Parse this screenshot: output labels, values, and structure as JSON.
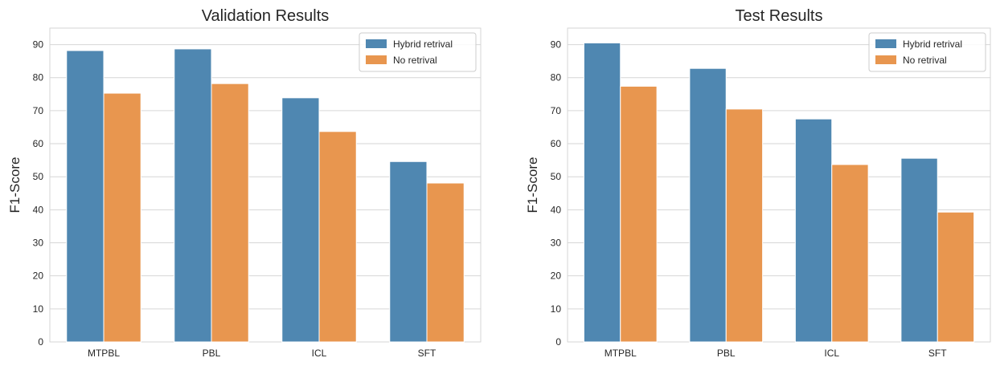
{
  "colors": {
    "series_0": "#4f87b1",
    "series_1": "#e8964f",
    "grid": "#d6d6d6",
    "axis_text": "#262626"
  },
  "chart_data": [
    {
      "type": "bar",
      "title": "Validation Results",
      "xlabel": "",
      "ylabel": "F1-Score",
      "categories": [
        "MTPBL",
        "PBL",
        "ICL",
        "SFT"
      ],
      "series": [
        {
          "name": "Hybrid retrival",
          "values": [
            88.2,
            88.7,
            73.9,
            54.6
          ]
        },
        {
          "name": "No retrival",
          "values": [
            75.3,
            78.2,
            63.7,
            48.1
          ]
        }
      ],
      "ylim": [
        0,
        95
      ],
      "yticks": [
        "0",
        "10",
        "20",
        "30",
        "40",
        "50",
        "60",
        "70",
        "80",
        "90"
      ],
      "grid": true,
      "legend": "top-right"
    },
    {
      "type": "bar",
      "title": "Test Results",
      "xlabel": "",
      "ylabel": "F1-Score",
      "categories": [
        "MTPBL",
        "PBL",
        "ICL",
        "SFT"
      ],
      "series": [
        {
          "name": "Hybrid retrival",
          "values": [
            90.5,
            82.8,
            67.5,
            55.6
          ]
        },
        {
          "name": "No retrival",
          "values": [
            77.4,
            70.5,
            53.7,
            39.3
          ]
        }
      ],
      "ylim": [
        0,
        95
      ],
      "yticks": [
        "0",
        "10",
        "20",
        "30",
        "40",
        "50",
        "60",
        "70",
        "80",
        "90"
      ],
      "grid": true,
      "legend": "top-right"
    }
  ]
}
